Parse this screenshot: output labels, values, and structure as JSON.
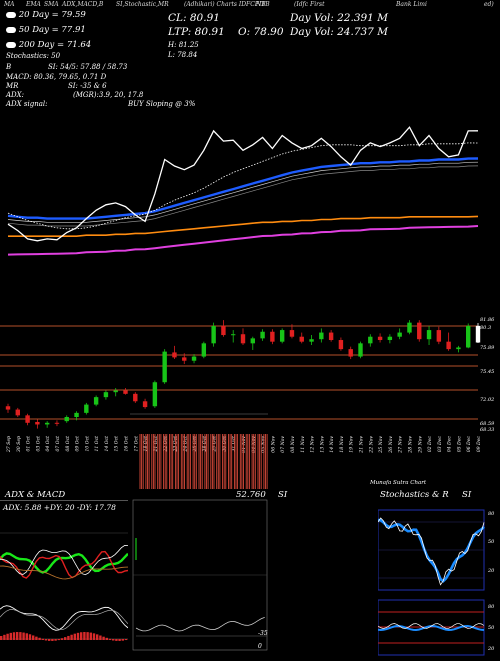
{
  "header": {
    "left": "MA",
    "items": [
      "EMA",
      "SMA",
      "ADX,MACD,B",
      "SI,Stochastic,MR",
      "(Adhikari) Charts IDFCFIB",
      "NTB",
      "(Idfc First",
      "Bank Limi",
      "ed)"
    ]
  },
  "legend": {
    "ma20": "20 Day = 79.59",
    "ma50": "50 Day = 77.91",
    "ma200": "200 Day = 71.64",
    "stoch": "Stochastics: 50",
    "rsi": "SI: 54/5: 57.88 / 58.73",
    "macd": "MACD: 80.36, 79.65, 0.71 D",
    "mr": "SI: -35 & 6",
    "adx": "(MGR):3.9, 20, 17.8",
    "signal": "BUY Sloping @ 3%",
    "labels": [
      "B",
      "MR",
      "ADX:",
      "ADX signal:"
    ]
  },
  "quote": {
    "cl": "CL: 80.91",
    "ltp": "LTP: 80.91",
    "open": "O: 78.90",
    "high": "H: 81.25",
    "low": "L: 78.84",
    "day_vol": "Day Vol: 22.391 M",
    "avg_vol": "Day Vol: 24.737 M"
  },
  "price_labels": [
    "81.86",
    "80.3",
    "75.89",
    "75.45",
    "72.02",
    "68.59",
    "68.33"
  ],
  "dates": [
    "27 Sep",
    "30 Sep",
    "01 Oct",
    "03 Oct",
    "04 Oct",
    "07 Oct",
    "08 Oct",
    "09 Oct",
    "10 Oct",
    "11 Oct",
    "14 Oct",
    "15 Oct",
    "16 Oct",
    "17 Oct",
    "18 Oct",
    "21 Oct",
    "22 Oct",
    "23 Oct",
    "24 Oct",
    "25 Oct",
    "28 Oct",
    "29 Oct",
    "30 Oct",
    "31 Oct",
    "01 Nov",
    "04 Nov",
    "05 Nov",
    "06 Nov",
    "07 Nov",
    "08 Nov",
    "11 Nov",
    "12 Nov",
    "13 Nov",
    "14 Nov",
    "18 Nov",
    "19 Nov",
    "21 Nov",
    "22 Nov",
    "25 Nov",
    "26 Nov",
    "27 Nov",
    "28 Nov",
    "29 Nov",
    "02 Dec",
    "03 Dec",
    "04 Dec",
    "05 Dec",
    "06 Dec",
    "09 Dec"
  ],
  "panels": {
    "adx": {
      "title": "ADX & MACD",
      "readout": "ADX: 5.88  +DY: 20  -DY: 17.78"
    },
    "mid": {
      "readout": "SI",
      "value": "52.760",
      "bottom": "-35",
      "zero": "0"
    },
    "stoch": {
      "title": "Stochastics & R",
      "title2": "SI",
      "levels": [
        "80",
        "50",
        "20"
      ],
      "rsi_levels": [
        "80",
        "50",
        "20"
      ]
    }
  },
  "footer_small": "Munafa Sutra Chart",
  "colors": {
    "up": "#18c418",
    "down": "#e02020",
    "ma20": "#ffffff",
    "ma50": "#1e5cff",
    "ma200": "#ff8c10",
    "magenta": "#e040e0",
    "volume": "#d84a3a"
  },
  "chart_data": {
    "type": "candlestick",
    "x": [
      "27 Sep",
      "30 Sep",
      "01 Oct",
      "03 Oct",
      "04 Oct",
      "07 Oct",
      "08 Oct",
      "09 Oct",
      "10 Oct",
      "11 Oct",
      "14 Oct",
      "15 Oct",
      "16 Oct",
      "17 Oct",
      "18 Oct",
      "21 Oct",
      "22 Oct",
      "23 Oct",
      "24 Oct",
      "25 Oct",
      "28 Oct",
      "29 Oct",
      "30 Oct",
      "31 Oct",
      "01 Nov",
      "04 Nov",
      "05 Nov",
      "06 Nov",
      "07 Nov",
      "08 Nov",
      "11 Nov",
      "12 Nov",
      "13 Nov",
      "14 Nov",
      "18 Nov",
      "19 Nov",
      "21 Nov",
      "22 Nov",
      "25 Nov",
      "26 Nov",
      "27 Nov",
      "28 Nov",
      "29 Nov",
      "02 Dec",
      "03 Dec",
      "04 Dec",
      "05 Dec",
      "06 Dec",
      "09 Dec"
    ],
    "ohlc": [
      [
        71.2,
        71.5,
        70.4,
        70.8
      ],
      [
        70.8,
        71.0,
        69.9,
        70.1
      ],
      [
        70.1,
        70.3,
        68.9,
        69.2
      ],
      [
        69.3,
        69.6,
        68.5,
        69.0
      ],
      [
        69.0,
        69.4,
        68.6,
        69.2
      ],
      [
        69.2,
        69.5,
        68.8,
        69.1
      ],
      [
        69.4,
        70.1,
        69.2,
        69.9
      ],
      [
        69.9,
        70.6,
        69.5,
        70.4
      ],
      [
        70.4,
        71.6,
        70.2,
        71.4
      ],
      [
        71.4,
        72.5,
        71.2,
        72.3
      ],
      [
        72.3,
        73.1,
        72.0,
        72.9
      ],
      [
        72.9,
        73.4,
        72.4,
        73.1
      ],
      [
        73.1,
        73.4,
        72.6,
        72.7
      ],
      [
        72.7,
        72.9,
        71.6,
        71.8
      ],
      [
        71.8,
        72.1,
        70.9,
        71.1
      ],
      [
        71.2,
        74.3,
        71.0,
        74.1
      ],
      [
        74.1,
        78.1,
        73.9,
        77.8
      ],
      [
        77.7,
        78.5,
        76.9,
        77.1
      ],
      [
        77.1,
        77.6,
        76.3,
        76.7
      ],
      [
        76.7,
        77.5,
        76.4,
        77.2
      ],
      [
        77.2,
        79.0,
        77.0,
        78.8
      ],
      [
        78.8,
        81.3,
        78.4,
        80.9
      ],
      [
        80.9,
        81.6,
        79.6,
        79.8
      ],
      [
        79.8,
        80.4,
        78.9,
        79.9
      ],
      [
        79.9,
        80.6,
        78.6,
        78.8
      ],
      [
        78.8,
        79.6,
        78.0,
        79.4
      ],
      [
        79.4,
        80.5,
        79.1,
        80.2
      ],
      [
        80.2,
        80.5,
        78.7,
        79.0
      ],
      [
        79.0,
        80.6,
        78.8,
        80.4
      ],
      [
        80.4,
        81.1,
        79.4,
        79.6
      ],
      [
        79.6,
        80.1,
        78.8,
        79.0
      ],
      [
        79.0,
        79.8,
        78.6,
        79.3
      ],
      [
        79.3,
        80.6,
        78.9,
        80.1
      ],
      [
        80.1,
        80.4,
        79.0,
        79.2
      ],
      [
        79.2,
        79.5,
        77.9,
        78.1
      ],
      [
        78.1,
        78.4,
        76.9,
        77.2
      ],
      [
        77.2,
        79.0,
        77.0,
        78.8
      ],
      [
        78.8,
        79.9,
        78.4,
        79.6
      ],
      [
        79.6,
        80.0,
        78.9,
        79.2
      ],
      [
        79.2,
        79.9,
        78.8,
        79.6
      ],
      [
        79.6,
        80.6,
        79.3,
        80.1
      ],
      [
        80.1,
        81.6,
        79.9,
        81.3
      ],
      [
        81.3,
        81.6,
        79.0,
        79.3
      ],
      [
        79.3,
        80.9,
        78.6,
        80.4
      ],
      [
        80.4,
        80.8,
        78.7,
        79.0
      ],
      [
        79.0,
        80.1,
        77.9,
        78.1
      ],
      [
        78.1,
        78.5,
        77.7,
        78.3
      ],
      [
        78.3,
        81.2,
        78.2,
        80.9
      ],
      [
        78.9,
        81.25,
        78.84,
        80.91
      ]
    ],
    "ylim": [
      68.33,
      81.86
    ],
    "series": [
      {
        "name": "20 Day",
        "values": [
          72.0,
          71.6,
          71.2,
          70.9,
          70.6,
          70.4,
          70.3,
          70.3,
          70.4,
          70.6,
          70.9,
          71.2,
          71.5,
          71.7,
          71.9,
          72.3,
          72.9,
          73.4,
          73.8,
          74.2,
          74.7,
          75.3,
          75.9,
          76.4,
          76.8,
          77.2,
          77.6,
          78.0,
          78.4,
          78.7,
          78.9,
          79.1,
          79.3,
          79.4,
          79.4,
          79.4,
          79.3,
          79.3,
          79.3,
          79.3,
          79.3,
          79.4,
          79.4,
          79.5,
          79.5,
          79.5,
          79.5,
          79.6,
          79.59
        ]
      },
      {
        "name": "50 Day",
        "values": [
          71.7,
          71.6,
          71.5,
          71.5,
          71.4,
          71.4,
          71.4,
          71.4,
          71.4,
          71.5,
          71.6,
          71.7,
          71.8,
          71.9,
          72.0,
          72.2,
          72.5,
          72.8,
          73.1,
          73.4,
          73.7,
          74.0,
          74.3,
          74.6,
          74.9,
          75.2,
          75.5,
          75.8,
          76.1,
          76.4,
          76.6,
          76.8,
          77.0,
          77.1,
          77.2,
          77.3,
          77.4,
          77.4,
          77.5,
          77.5,
          77.6,
          77.6,
          77.7,
          77.7,
          77.8,
          77.8,
          77.8,
          77.9,
          77.91
        ]
      },
      {
        "name": "200 Day",
        "values": [
          69.5,
          69.5,
          69.5,
          69.5,
          69.5,
          69.5,
          69.5,
          69.5,
          69.6,
          69.6,
          69.6,
          69.7,
          69.7,
          69.8,
          69.8,
          69.9,
          70.0,
          70.1,
          70.2,
          70.3,
          70.4,
          70.5,
          70.6,
          70.7,
          70.8,
          70.9,
          71.0,
          71.0,
          71.1,
          71.1,
          71.2,
          71.2,
          71.3,
          71.3,
          71.4,
          71.4,
          71.4,
          71.5,
          71.5,
          71.5,
          71.5,
          71.6,
          71.6,
          71.6,
          71.6,
          71.6,
          71.6,
          71.6,
          71.64
        ]
      }
    ]
  }
}
